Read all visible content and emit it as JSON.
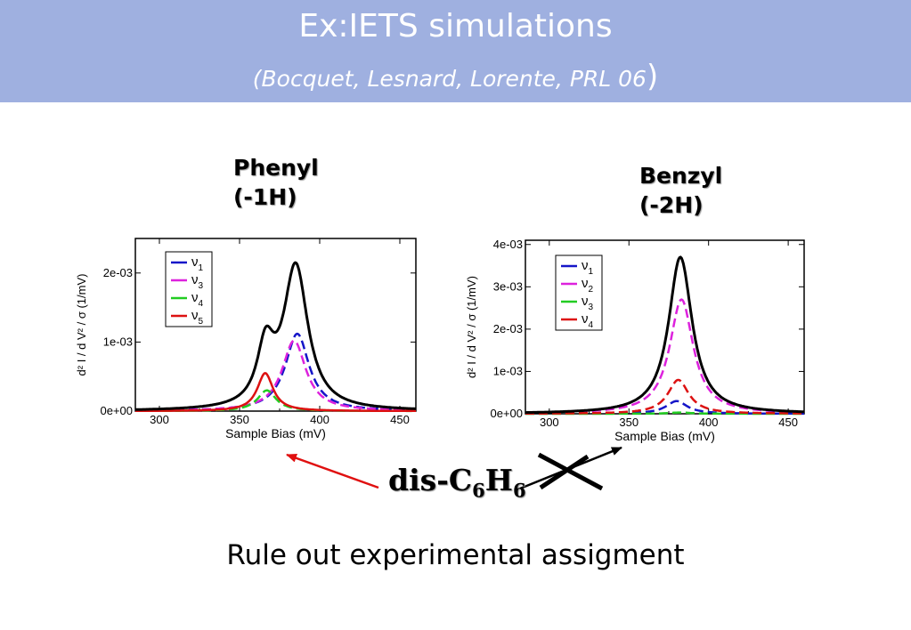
{
  "title": "Ex:IETS simulations",
  "subtitle": "(Bocquet, Lesnard, Lorente, PRL 06",
  "subtitle_close": ")",
  "phenyl": {
    "name": "Phenyl",
    "note": "(-1H)"
  },
  "benzyl": {
    "name": "Benzyl",
    "note": "(-2H)"
  },
  "dis": {
    "prefix": "dis-C",
    "sub1": "6",
    "mid": "H",
    "sub2": "6"
  },
  "conclusion": "Rule out experimental assigment",
  "colors": {
    "header": "#9fb0e0",
    "total": "#000000",
    "arrow_red": "#e01010",
    "arrow_black": "#000000"
  },
  "chart_data": [
    {
      "type": "line",
      "xlabel": "Sample Bias (mV)",
      "ylabel": "d² I / d V² / σ (1/mV)",
      "xlim": [
        285,
        460
      ],
      "ylim": [
        0,
        0.0025
      ],
      "xticks": [
        300,
        350,
        400,
        450
      ],
      "xtick_labels": [
        "300",
        "350",
        "400",
        "450"
      ],
      "yticks": [
        0,
        0.001,
        0.002
      ],
      "ytick_labels": [
        "0e+00",
        "1e-03",
        "2e-03"
      ],
      "legend_position": "top-left",
      "total": {
        "color": "#000000",
        "peak_max": 0.00215
      },
      "series": [
        {
          "name": "ν",
          "sub": "1",
          "color": "#1515c8",
          "center": 386,
          "width": 9,
          "peak": 0.00112
        },
        {
          "name": "ν",
          "sub": "3",
          "color": "#dd22dd",
          "center": 384,
          "width": 9,
          "peak": 0.00102
        },
        {
          "name": "ν",
          "sub": "4",
          "color": "#22cc22",
          "center": 367,
          "width": 7,
          "peak": 0.0003
        },
        {
          "name": "ν",
          "sub": "5",
          "color": "#dd1111",
          "center": 366,
          "width": 6,
          "peak": 0.00055
        }
      ]
    },
    {
      "type": "line",
      "xlabel": "Sample Bias (mV)",
      "ylabel": "d² I / d V² / σ (1/mV)",
      "xlim": [
        285,
        460
      ],
      "ylim": [
        0,
        0.0041
      ],
      "xticks": [
        300,
        350,
        400,
        450
      ],
      "xtick_labels": [
        "300",
        "350",
        "400",
        "450"
      ],
      "yticks": [
        0,
        0.001,
        0.002,
        0.003,
        0.004
      ],
      "ytick_labels": [
        "0e+00",
        "1e-03",
        "2e-03",
        "3e-03",
        "4e-03"
      ],
      "legend_position": "top-left",
      "total": {
        "color": "#000000",
        "peak_max": 0.0037
      },
      "series": [
        {
          "name": "ν",
          "sub": "1",
          "color": "#1515c8",
          "center": 380,
          "width": 8,
          "peak": 0.0003
        },
        {
          "name": "ν",
          "sub": "2",
          "color": "#dd22dd",
          "center": 383,
          "width": 9,
          "peak": 0.0027
        },
        {
          "name": "ν",
          "sub": "3",
          "color": "#22cc22",
          "center": 382,
          "width": 8,
          "peak": 3e-05
        },
        {
          "name": "ν",
          "sub": "4",
          "color": "#dd1111",
          "center": 381,
          "width": 8,
          "peak": 0.0008
        }
      ]
    }
  ]
}
